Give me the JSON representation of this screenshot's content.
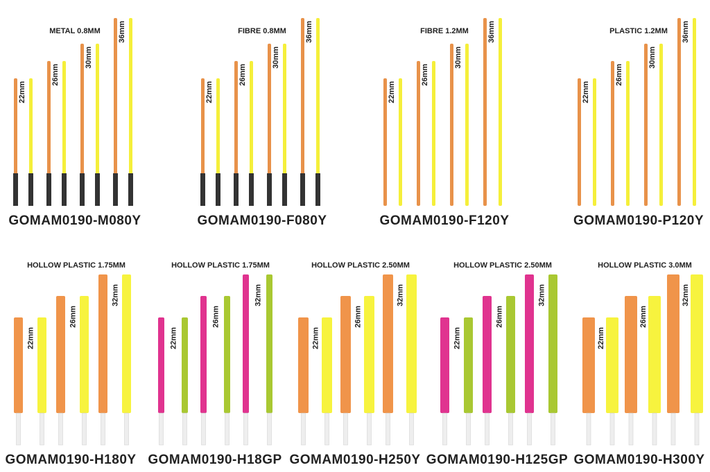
{
  "top_row": [
    {
      "title": "METAL 0.8MM",
      "code": "GOMAM0190-M080Y",
      "lengths": [
        "22mm",
        "26mm",
        "30mm",
        "36mm"
      ]
    },
    {
      "title": "FIBRE 0.8MM",
      "code": "GOMAM0190-F080Y",
      "lengths": [
        "22mm",
        "26mm",
        "30mm",
        "36mm"
      ]
    },
    {
      "title": "FIBRE 1.2MM",
      "code": "GOMAM0190-F120Y",
      "lengths": [
        "22mm",
        "26mm",
        "30mm",
        "36mm"
      ]
    },
    {
      "title": "PLASTIC 1.2MM",
      "code": "GOMAM0190-P120Y",
      "lengths": [
        "22mm",
        "26mm",
        "30mm",
        "36mm"
      ]
    }
  ],
  "bottom_row": [
    {
      "title": "HOLLOW PLASTIC 1.75MM",
      "code": "GOMAM0190-H180Y",
      "lengths": [
        "22mm",
        "26mm",
        "32mm"
      ]
    },
    {
      "title": "HOLLOW PLASTIC 1.75MM",
      "code": "GOMAM0190-H18GP",
      "lengths": [
        "22mm",
        "26mm",
        "32mm"
      ]
    },
    {
      "title": "HOLLOW PLASTIC 2.50MM",
      "code": "GOMAM0190-H250Y",
      "lengths": [
        "22mm",
        "26mm",
        "32mm"
      ]
    },
    {
      "title": "HOLLOW PLASTIC 2.50MM",
      "code": "GOMAM0190-H125GP",
      "lengths": [
        "22mm",
        "26mm",
        "32mm"
      ]
    },
    {
      "title": "HOLLOW PLASTIC 3.0MM",
      "code": "GOMAM0190-H300Y",
      "lengths": [
        "22mm",
        "26mm",
        "32mm"
      ]
    }
  ]
}
